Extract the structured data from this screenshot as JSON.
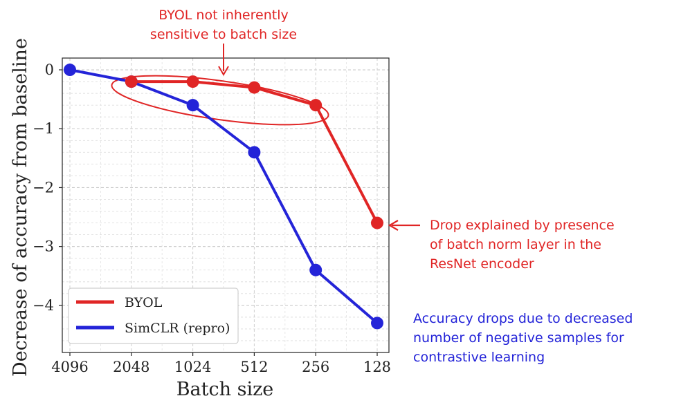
{
  "chart_data": {
    "type": "line",
    "title": "",
    "xlabel": "Batch size",
    "ylabel": "Decrease of accuracy from baseline",
    "categories": [
      "4096",
      "2048",
      "1024",
      "512",
      "256",
      "128"
    ],
    "ylim": [
      -4.8,
      0.2
    ],
    "yticks": [
      0,
      -1,
      -2,
      -3,
      -4
    ],
    "ytick_labels": [
      "0",
      "−1",
      "−2",
      "−3",
      "−4"
    ],
    "grid": true,
    "legend_position": "bottom-left",
    "series": [
      {
        "name": "BYOL",
        "color": "#e02525",
        "x": [
          "2048",
          "1024",
          "512",
          "256",
          "128"
        ],
        "values": [
          -0.2,
          -0.2,
          -0.3,
          -0.6,
          -2.6
        ]
      },
      {
        "name": "SimCLR (repro)",
        "color": "#2424d8",
        "x": [
          "4096",
          "2048",
          "1024",
          "512",
          "256",
          "128"
        ],
        "values": [
          0.0,
          -0.2,
          -0.6,
          -1.4,
          -3.4,
          -4.3
        ]
      }
    ]
  },
  "annotations": {
    "byol_top": [
      "BYOL not inherently",
      "sensitive to batch size"
    ],
    "byol_drop": [
      "Drop explained by presence",
      "of batch norm layer in the",
      "ResNet encoder"
    ],
    "simclr_drop": [
      "Accuracy drops due to decreased",
      "number of negative samples for",
      "contrastive learning"
    ],
    "red_color": "#e02525",
    "blue_color": "#2424d8"
  }
}
